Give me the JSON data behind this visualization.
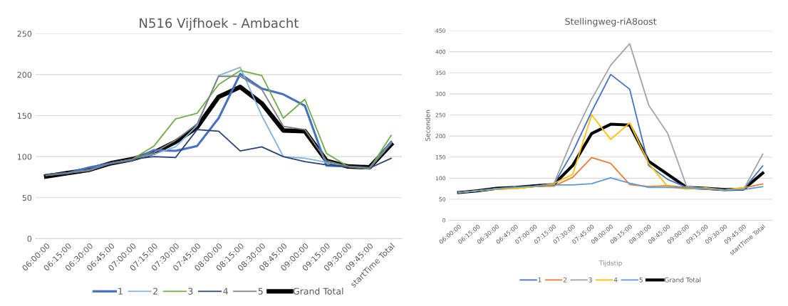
{
  "chart_data": [
    {
      "type": "line",
      "title": "N516 Vijfhoek - Ambacht",
      "categories": [
        "06:00:00",
        "06:15:00",
        "06:30:00",
        "06:45:00",
        "07:00:00",
        "07:15:00",
        "07:30:00",
        "07:45:00",
        "08:00:00",
        "08:15:00",
        "08:30:00",
        "08:45:00",
        "09:00:00",
        "09:15:00",
        "09:30:00",
        "09:45:00",
        "startTime Total"
      ],
      "ylim": [
        0,
        250
      ],
      "yticks": [
        0,
        50,
        100,
        150,
        200,
        250
      ],
      "grid": "y",
      "legend": "bottom",
      "marker": "none",
      "line_style": "solid",
      "series": [
        {
          "name": "1",
          "color": "#4472c4",
          "values": [
            78,
            80,
            87,
            92,
            96,
            108,
            107,
            113,
            147,
            201,
            183,
            176,
            162,
            89,
            88,
            86,
            118
          ]
        },
        {
          "name": "2",
          "color": "#7fb3e0",
          "values": [
            78,
            80,
            84,
            92,
            97,
            103,
            112,
            138,
            199,
            209,
            150,
            100,
            98,
            93,
            88,
            86,
            117
          ]
        },
        {
          "name": "3",
          "color": "#70ad47",
          "values": [
            null,
            null,
            null,
            92,
            97,
            113,
            146,
            153,
            188,
            205,
            199,
            147,
            170,
            104,
            88,
            85,
            126
          ]
        },
        {
          "name": "4",
          "color": "#264478",
          "values": [
            78,
            80,
            83,
            92,
            97,
            100,
            99,
            133,
            131,
            107,
            112,
            100,
            94,
            90,
            88,
            86,
            98
          ]
        },
        {
          "name": "5",
          "color": "#7f7f7f",
          "values": [
            77,
            80,
            83,
            92,
            97,
            105,
            120,
            140,
            198,
            198,
            182,
            137,
            133,
            95,
            88,
            86,
            116
          ]
        },
        {
          "name": "Grand Total",
          "color": "#000000",
          "values": [
            76,
            80,
            84,
            92,
            97,
            105,
            118,
            136,
            173,
            185,
            165,
            132,
            131,
            95,
            88,
            87,
            115
          ]
        }
      ]
    },
    {
      "type": "line",
      "title": "Stellingweg-riA8oost",
      "xlabel": "Tijdstip",
      "ylabel": "Seconden",
      "categories": [
        "06:00:00",
        "06:15:00",
        "06:30:00",
        "06:45:00",
        "07:00:00",
        "07:15:00",
        "07:30:00",
        "07:45:00",
        "08:00:00",
        "08:15:00",
        "08:30:00",
        "08:45:00",
        "09:00:00",
        "09:15:00",
        "09:30:00",
        "09:45:00",
        "startTime Total"
      ],
      "ylim": [
        0,
        450
      ],
      "yticks": [
        0,
        50,
        100,
        150,
        200,
        250,
        300,
        350,
        400,
        450
      ],
      "grid": "y",
      "legend": "bottom",
      "marker": "none",
      "line_style": "solid",
      "series": [
        {
          "name": "1",
          "color": "#4472c4",
          "values": [
            66,
            70,
            75,
            78,
            81,
            85,
            162,
            258,
            346,
            311,
            130,
            97,
            78,
            75,
            72,
            74,
            129
          ]
        },
        {
          "name": "2",
          "color": "#ed7d31",
          "values": [
            66,
            70,
            75,
            77,
            80,
            81,
            102,
            149,
            135,
            85,
            80,
            82,
            78,
            74,
            72,
            77,
            86
          ]
        },
        {
          "name": "3",
          "color": "#a5a5a5",
          "values": [
            66,
            70,
            75,
            77,
            81,
            86,
            195,
            288,
            368,
            419,
            273,
            206,
            80,
            75,
            72,
            74,
            157
          ]
        },
        {
          "name": "4",
          "color": "#ffc000",
          "values": [
            66,
            70,
            74,
            75,
            80,
            87,
            109,
            250,
            192,
            231,
            135,
            80,
            74,
            77,
            72,
            78,
            null
          ]
        },
        {
          "name": "5",
          "color": "#5b9bd5",
          "values": [
            66,
            70,
            75,
            79,
            81,
            84,
            84,
            87,
            101,
            88,
            78,
            78,
            77,
            75,
            72,
            73,
            80
          ]
        },
        {
          "name": "Grand Total",
          "color": "#000000",
          "values": [
            66,
            70,
            76,
            78,
            82,
            85,
            130,
            206,
            228,
            226,
            140,
            109,
            78,
            76,
            73,
            74,
            112
          ]
        }
      ]
    }
  ]
}
